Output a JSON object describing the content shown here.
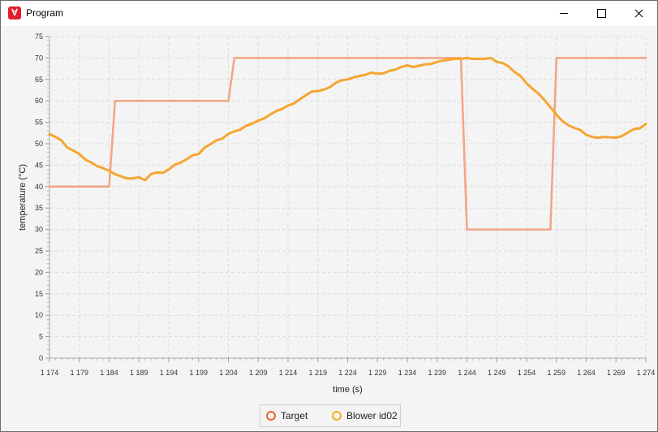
{
  "window": {
    "title": "Program",
    "app_icon": "app-logo-icon"
  },
  "colors": {
    "target": "#f2a483",
    "blower": "#f6a531",
    "target_marker": "#e8632c",
    "blower_marker": "#f2b21a",
    "grid": "#dcdcdc",
    "plot_bg": "#f4f4f4"
  },
  "chart_data": {
    "type": "line",
    "title": "",
    "xlabel": "time (s)",
    "ylabel": "temperature (°C)",
    "xlim": [
      1174,
      1274
    ],
    "ylim": [
      0,
      75
    ],
    "x_ticks": [
      1174,
      1179,
      1184,
      1189,
      1194,
      1199,
      1204,
      1209,
      1214,
      1219,
      1224,
      1229,
      1234,
      1239,
      1244,
      1249,
      1254,
      1259,
      1264,
      1269,
      1274
    ],
    "x_tick_labels": [
      "1 174",
      "1 179",
      "1 184",
      "1 189",
      "1 194",
      "1 199",
      "1 204",
      "1 209",
      "1 214",
      "1 219",
      "1 224",
      "1 229",
      "1 234",
      "1 239",
      "1 244",
      "1 249",
      "1 254",
      "1 259",
      "1 264",
      "1 269",
      "1 274"
    ],
    "y_ticks": [
      0,
      5,
      10,
      15,
      20,
      25,
      30,
      35,
      40,
      45,
      50,
      55,
      60,
      65,
      70,
      75
    ],
    "grid": true,
    "legend_position": "bottom-center",
    "series": [
      {
        "name": "Target",
        "x": [
          1174,
          1184,
          1185,
          1204,
          1205,
          1243,
          1244,
          1258,
          1259,
          1274
        ],
        "y": [
          40,
          40,
          60,
          60,
          70,
          70,
          30,
          30,
          70,
          70
        ]
      },
      {
        "name": "Blower id02",
        "x": [
          1174,
          1175,
          1176,
          1177,
          1178,
          1179,
          1180,
          1181,
          1182,
          1183,
          1184,
          1185,
          1186,
          1187,
          1188,
          1189,
          1190,
          1191,
          1192,
          1193,
          1194,
          1195,
          1196,
          1197,
          1198,
          1199,
          1200,
          1201,
          1202,
          1203,
          1204,
          1205,
          1206,
          1207,
          1208,
          1209,
          1210,
          1211,
          1212,
          1213,
          1214,
          1215,
          1216,
          1217,
          1218,
          1219,
          1220,
          1221,
          1222,
          1223,
          1224,
          1225,
          1226,
          1227,
          1228,
          1229,
          1230,
          1231,
          1232,
          1233,
          1234,
          1235,
          1236,
          1237,
          1238,
          1239,
          1240,
          1241,
          1242,
          1243,
          1244,
          1245,
          1246,
          1247,
          1248,
          1249,
          1250,
          1251,
          1252,
          1253,
          1254,
          1255,
          1256,
          1257,
          1258,
          1259,
          1260,
          1261,
          1262,
          1263,
          1264,
          1265,
          1266,
          1267,
          1268,
          1269,
          1270,
          1271,
          1272,
          1273,
          1274
        ],
        "y": [
          52.3,
          51.6,
          50.8,
          49.1,
          48.4,
          47.6,
          46.3,
          45.6,
          44.8,
          44.3,
          43.7,
          42.9,
          42.4,
          41.9,
          41.9,
          42.2,
          41.5,
          42.9,
          43.3,
          43.2,
          44.0,
          45.1,
          45.6,
          46.4,
          47.3,
          47.6,
          49.1,
          49.9,
          50.8,
          51.2,
          52.3,
          52.9,
          53.3,
          54.2,
          54.7,
          55.4,
          55.9,
          56.8,
          57.6,
          58.1,
          58.9,
          59.4,
          60.4,
          61.3,
          62.2,
          62.3,
          62.6,
          63.2,
          64.2,
          64.8,
          65.0,
          65.5,
          65.8,
          66.1,
          66.6,
          66.3,
          66.4,
          67.0,
          67.3,
          67.9,
          68.3,
          67.9,
          68.2,
          68.5,
          68.6,
          69.1,
          69.4,
          69.6,
          69.8,
          69.8,
          70.0,
          69.8,
          69.8,
          69.8,
          70.0,
          69.1,
          68.8,
          68.0,
          66.7,
          65.8,
          64.1,
          62.8,
          61.7,
          60.2,
          58.5,
          56.8,
          55.3,
          54.3,
          53.7,
          53.2,
          52.1,
          51.6,
          51.4,
          51.6,
          51.5,
          51.4,
          51.8,
          52.6,
          53.4,
          53.6,
          54.6
        ]
      }
    ]
  }
}
